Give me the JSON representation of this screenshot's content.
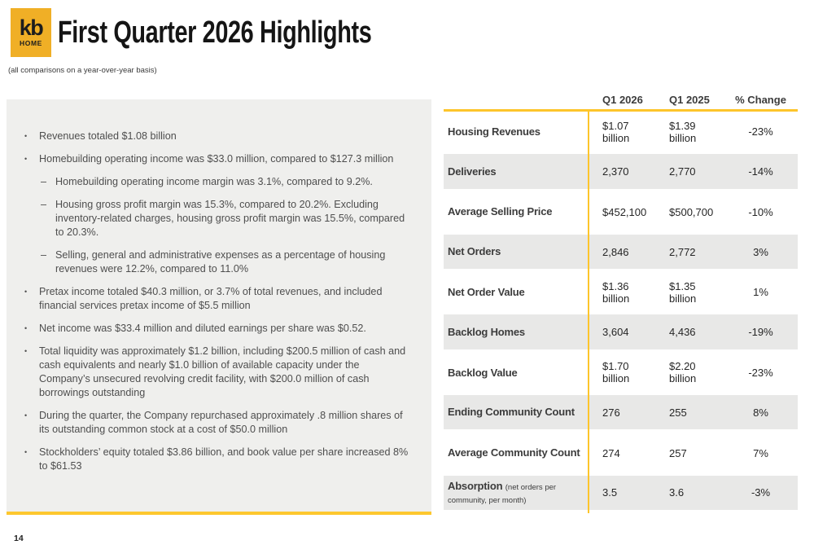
{
  "slide": {
    "title": "First Quarter 2026 Highlights",
    "subtitle": "(all comparisons on a year-over-year basis)",
    "page_number": "14"
  },
  "logo": {
    "kb": "kb",
    "home": "HOME"
  },
  "bullets": [
    {
      "level": 1,
      "text": "Revenues totaled $1.08 billion"
    },
    {
      "level": 1,
      "text": "Homebuilding operating income was $33.0 million, compared to $127.3 million"
    },
    {
      "level": 2,
      "text": "Homebuilding operating income margin was 3.1%, compared to 9.2%."
    },
    {
      "level": 2,
      "text": "Housing gross profit margin was 15.3%, compared to 20.2%. Excluding inventory-related charges, housing gross profit margin was 15.5%, compared to 20.3%."
    },
    {
      "level": 2,
      "text": "Selling, general and administrative expenses as a percentage of housing revenues were 12.2%, compared to 11.0%"
    },
    {
      "level": 1,
      "text": "Pretax income totaled $40.3 million, or 3.7% of total revenues, and included financial services pretax income of $5.5 million"
    },
    {
      "level": 1,
      "text": "Net income was $33.4 million and diluted earnings per share was $0.52."
    },
    {
      "level": 1,
      "text": "Total liquidity was approximately $1.2 billion, including $200.5 million of cash and cash equivalents and nearly $1.0 billion of available capacity under the Company’s unsecured revolving credit facility, with $200.0 million of cash borrowings outstanding"
    },
    {
      "level": 1,
      "text": "During the quarter, the Company repurchased approximately .8 million shares of its outstanding common stock at a cost of $50.0 million"
    },
    {
      "level": 1,
      "text": "Stockholders’ equity totaled $3.86 billion, and book value per share increased 8% to $61.53"
    }
  ],
  "table": {
    "col_headers": [
      "Q1 2026",
      "Q1 2025",
      "% Change"
    ],
    "rows": [
      {
        "label": "Housing Revenues",
        "note": "",
        "q1_2026": "$1.07 billion",
        "q1_2025": "$1.39 billion",
        "pct_change": "-23%"
      },
      {
        "label": "Deliveries",
        "note": "",
        "q1_2026": "2,370",
        "q1_2025": "2,770",
        "pct_change": "-14%"
      },
      {
        "label": "Average Selling Price",
        "note": "",
        "q1_2026": "$452,100",
        "q1_2025": "$500,700",
        "pct_change": "-10%"
      },
      {
        "label": "Net Orders",
        "note": "",
        "q1_2026": "2,846",
        "q1_2025": "2,772",
        "pct_change": "3%"
      },
      {
        "label": "Net Order Value",
        "note": "",
        "q1_2026": "$1.36 billion",
        "q1_2025": "$1.35 billion",
        "pct_change": "1%"
      },
      {
        "label": "Backlog Homes",
        "note": "",
        "q1_2026": "3,604",
        "q1_2025": "4,436",
        "pct_change": "-19%"
      },
      {
        "label": "Backlog Value",
        "note": "",
        "q1_2026": "$1.70 billion",
        "q1_2025": "$2.20 billion",
        "pct_change": "-23%"
      },
      {
        "label": "Ending Community Count",
        "note": "",
        "q1_2026": "276",
        "q1_2025": "255",
        "pct_change": "8%"
      },
      {
        "label": "Average Community Count",
        "note": "",
        "q1_2026": "274",
        "q1_2025": "257",
        "pct_change": "7%"
      },
      {
        "label": "Absorption",
        "note": "(net orders per community, per month)",
        "q1_2026": "3.5",
        "q1_2025": "3.6",
        "pct_change": "-3%"
      }
    ]
  },
  "colors": {
    "brand_yellow": "#F0AF26",
    "accent_line_yellow": "#FDC52B",
    "panel_gray": "#EFEFED",
    "row_stripe_gray": "#E8E8E7",
    "text_dark": "#3C3C3C"
  }
}
